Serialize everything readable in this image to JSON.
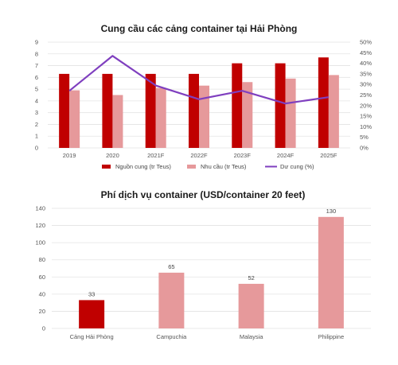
{
  "chart_data": [
    {
      "type": "bar+line",
      "title": "Cung cầu các cảng container tại Hải Phòng",
      "categories": [
        "2019",
        "2020",
        "2021F",
        "2022F",
        "2023F",
        "2024F",
        "2025F"
      ],
      "ylim": [
        0,
        9
      ],
      "yticks": [
        "0",
        "1",
        "2",
        "3",
        "4",
        "5",
        "6",
        "7",
        "8",
        "9"
      ],
      "y2lim": [
        0,
        50
      ],
      "y2ticks": [
        "0%",
        "5%",
        "10%",
        "15%",
        "20%",
        "25%",
        "30%",
        "35%",
        "40%",
        "45%",
        "50%"
      ],
      "grid": true,
      "legend_position": "bottom",
      "series": [
        {
          "name": "Nguồn cung (tr Teus)",
          "kind": "bar",
          "axis": "left",
          "color": "#c00000",
          "values": [
            6.3,
            6.3,
            6.3,
            6.3,
            7.2,
            7.2,
            7.7
          ]
        },
        {
          "name": "Nhu cầu (tr Teus)",
          "kind": "bar",
          "axis": "left",
          "color": "#e6999b",
          "values": [
            4.9,
            4.5,
            5.1,
            5.3,
            5.6,
            5.9,
            6.2
          ]
        },
        {
          "name": "Dư cung (%)",
          "kind": "line",
          "axis": "right",
          "color": "#7f3fbf",
          "values": [
            27,
            43.5,
            29.5,
            23,
            27,
            21,
            24
          ]
        }
      ]
    },
    {
      "type": "bar",
      "title": "Phí dịch vụ container (USD/container 20 feet)",
      "categories": [
        "Cảng Hải Phòng",
        "Campuchia",
        "Malaysia",
        "Philippine"
      ],
      "values": [
        33,
        65,
        52,
        130
      ],
      "colors": [
        "#c00000",
        "#e6999b",
        "#e6999b",
        "#e6999b"
      ],
      "ylim": [
        0,
        140
      ],
      "yticks": [
        "0",
        "20",
        "40",
        "60",
        "80",
        "100",
        "120",
        "140"
      ],
      "grid": true
    }
  ]
}
